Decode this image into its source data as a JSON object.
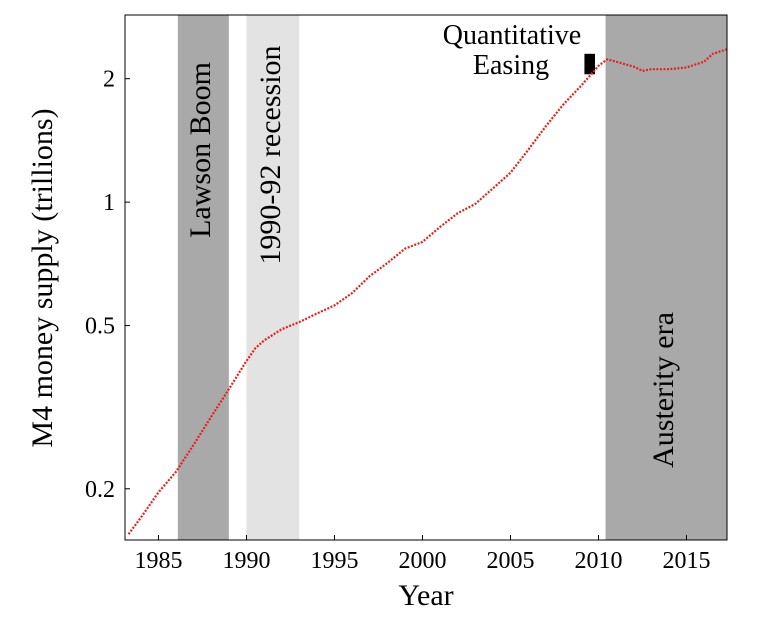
{
  "chart_data": {
    "type": "line",
    "x_label": "Year",
    "y_label": "M4 money supply (trillions)",
    "log_y": true,
    "xlim": [
      1983.1,
      2017.3
    ],
    "ylim": [
      0.15,
      2.86
    ],
    "xticks": [
      1985,
      1990,
      1995,
      2000,
      2005,
      2010,
      2015
    ],
    "yticks": [
      0.2,
      0.5,
      1,
      2
    ],
    "regions": [
      {
        "label": "Lawson Boom",
        "x": [
          1986.1,
          1989.0
        ],
        "color": "#a9a9a9"
      },
      {
        "label": "1990-92 recession",
        "x": [
          1990.0,
          1993.0
        ],
        "color": "#e3e3e3"
      },
      {
        "label": "Austerity era",
        "x": [
          2010.4,
          2017.3
        ],
        "color": "#a9a9a9"
      }
    ],
    "annotation": {
      "lines": [
        "Quantitative",
        "Easing"
      ],
      "x": [
        2009.2,
        2009.8
      ],
      "y": [
        2.05,
        2.3
      ],
      "color": "#000000"
    },
    "series": [
      {
        "name": "M4",
        "color": "#e8201c",
        "x": [
          1983.3,
          1984,
          1985,
          1986,
          1987,
          1988,
          1989,
          1990,
          1990.5,
          1991,
          1992,
          1993,
          1994,
          1995,
          1996,
          1997,
          1998,
          1999,
          2000,
          2001,
          2002,
          2003,
          2004,
          2005,
          2006,
          2007,
          2008,
          2009,
          2009.5,
          2010,
          2010.5,
          2011,
          2012,
          2012.5,
          2013,
          2014,
          2015,
          2016,
          2016.5,
          2017.3
        ],
        "values": [
          0.155,
          0.17,
          0.196,
          0.22,
          0.256,
          0.3,
          0.35,
          0.41,
          0.44,
          0.46,
          0.49,
          0.51,
          0.535,
          0.56,
          0.6,
          0.66,
          0.71,
          0.77,
          0.8,
          0.87,
          0.94,
          0.99,
          1.08,
          1.18,
          1.34,
          1.53,
          1.73,
          1.92,
          2.03,
          2.15,
          2.23,
          2.2,
          2.14,
          2.09,
          2.11,
          2.11,
          2.13,
          2.2,
          2.3,
          2.36
        ]
      }
    ]
  }
}
